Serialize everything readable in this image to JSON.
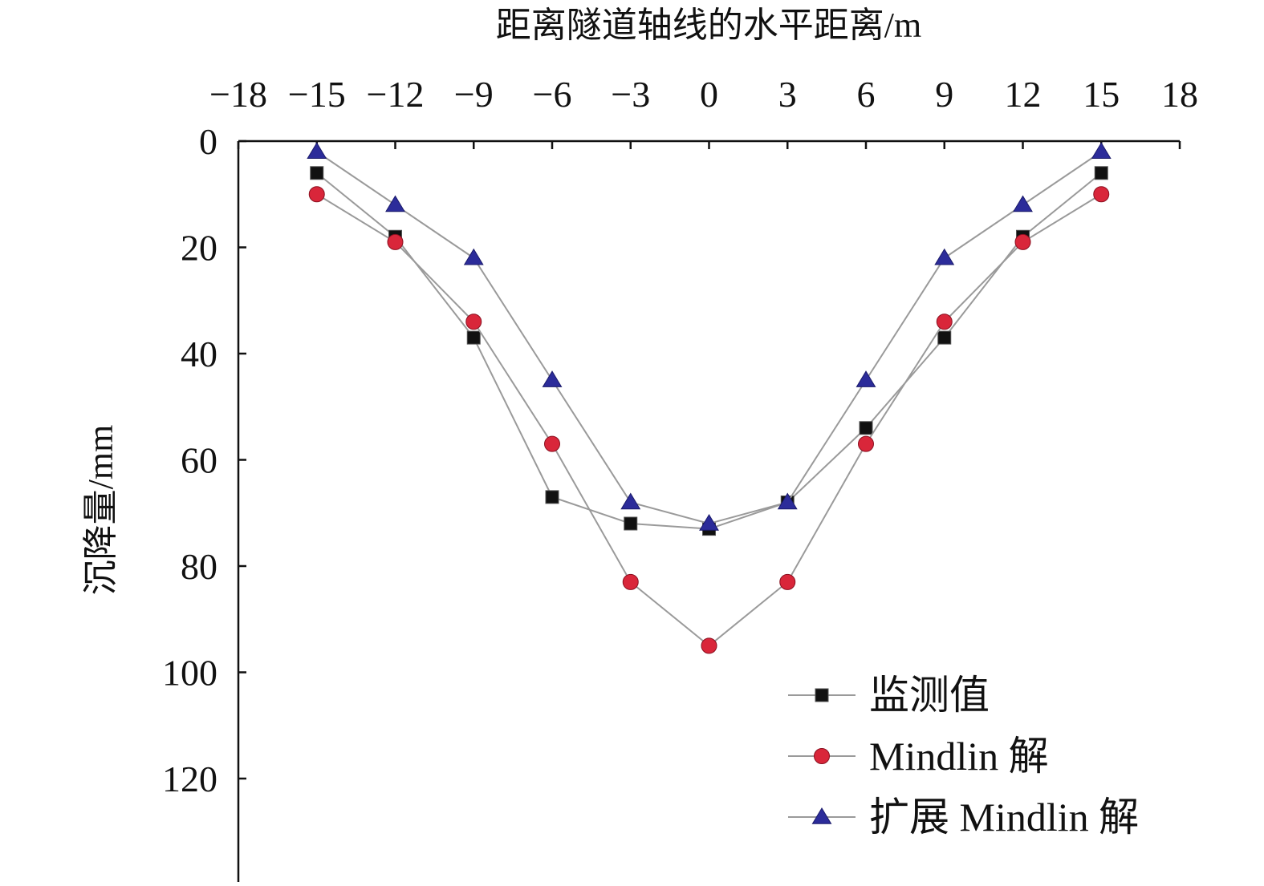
{
  "chart_data": {
    "type": "line",
    "x": [
      -15,
      -12,
      -9,
      -6,
      -3,
      0,
      3,
      6,
      9,
      12,
      15
    ],
    "series": [
      {
        "name": "监测值",
        "marker": "square",
        "color": "#111111",
        "values": [
          6,
          18,
          37,
          67,
          72,
          73,
          68,
          54,
          37,
          18,
          6
        ]
      },
      {
        "name": "Mindlin 解",
        "marker": "circle",
        "color": "#d9263a",
        "values": [
          10,
          19,
          34,
          57,
          83,
          95,
          83,
          57,
          34,
          19,
          10
        ]
      },
      {
        "name": "扩展 Mindlin 解",
        "marker": "triangle",
        "color": "#2c2c9a",
        "values": [
          2,
          12,
          22,
          45,
          68,
          72,
          68,
          45,
          22,
          12,
          2
        ]
      }
    ],
    "line_color": "#9a9a9a",
    "xlabel": "距离隧道轴线的水平距离/m",
    "ylabel": "沉降量/mm",
    "xlim": [
      -18,
      18
    ],
    "ylim": [
      0,
      138
    ],
    "x_ticks": [
      -18,
      -15,
      -12,
      -9,
      -6,
      -3,
      0,
      3,
      6,
      9,
      12,
      15,
      18
    ],
    "y_ticks": [
      0,
      20,
      40,
      60,
      80,
      100,
      120
    ],
    "x_tick_labels": [
      "−18",
      "−15",
      "−12",
      "−9",
      "−6",
      "−3",
      "0",
      "3",
      "6",
      "9",
      "12",
      "15",
      "18"
    ],
    "y_tick_labels": [
      "0",
      "20",
      "40",
      "60",
      "80",
      "100",
      "120"
    ],
    "x_axis_position": "top",
    "y_axis_inverted": true,
    "grid": false,
    "legend_position": "bottom-right"
  }
}
